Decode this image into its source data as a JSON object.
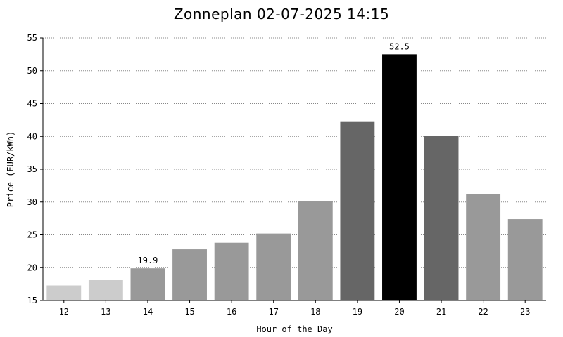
{
  "chart_data": {
    "type": "bar",
    "title": "Zonneplan 02-07-2025 14:15",
    "xlabel": "Hour of the Day",
    "ylabel": "Price (EUR/kWh)",
    "categories": [
      "12",
      "13",
      "14",
      "15",
      "16",
      "17",
      "18",
      "19",
      "20",
      "21",
      "22",
      "23"
    ],
    "values": [
      17.3,
      18.1,
      19.9,
      22.8,
      23.8,
      25.2,
      30.1,
      42.2,
      52.5,
      40.1,
      31.2,
      27.4
    ],
    "bar_colors": [
      "#cccccc",
      "#cccccc",
      "#999999",
      "#999999",
      "#999999",
      "#999999",
      "#999999",
      "#666666",
      "#000000",
      "#666666",
      "#999999",
      "#999999"
    ],
    "data_labels": [
      {
        "category": "14",
        "text": "19.9"
      },
      {
        "category": "20",
        "text": "52.5"
      }
    ],
    "ylim": [
      15,
      55
    ],
    "yticks": [
      15,
      20,
      25,
      30,
      35,
      40,
      45,
      50,
      55
    ],
    "grid": true,
    "grid_style": "dotted",
    "legend": "none"
  }
}
